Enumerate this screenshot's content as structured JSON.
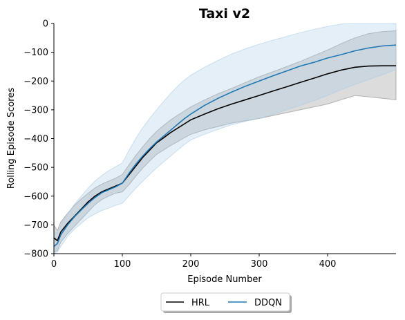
{
  "chart_data": {
    "type": "line",
    "title": "Taxi v2",
    "xlabel": "Episode Number",
    "ylabel": "Rolling Episode Scores",
    "xlim": [
      0,
      500
    ],
    "ylim": [
      -800,
      0
    ],
    "xticks": [
      0,
      100,
      200,
      300,
      400
    ],
    "yticks": [
      0,
      -100,
      -200,
      -300,
      -400,
      -500,
      -600,
      -700,
      -800
    ],
    "xtick_labels": [
      "0",
      "100",
      "200",
      "300",
      "400"
    ],
    "ytick_labels": [
      "0",
      "−100",
      "−200",
      "−300",
      "−400",
      "−500",
      "−600",
      "−700",
      "−800"
    ],
    "grid": false,
    "legend_position": "bottom-center",
    "series": [
      {
        "name": "HRL",
        "color": "#000000",
        "band_color": "#808080",
        "x": [
          0,
          5,
          10,
          20,
          30,
          40,
          50,
          60,
          70,
          80,
          90,
          100,
          110,
          120,
          130,
          140,
          150,
          160,
          170,
          180,
          190,
          200,
          220,
          240,
          260,
          280,
          300,
          320,
          340,
          360,
          380,
          400,
          420,
          440,
          460,
          480,
          500
        ],
        "mean": [
          -745,
          -755,
          -725,
          -695,
          -670,
          -645,
          -620,
          -600,
          -585,
          -575,
          -565,
          -555,
          -525,
          -495,
          -465,
          -440,
          -415,
          -398,
          -380,
          -365,
          -350,
          -335,
          -315,
          -296,
          -280,
          -265,
          -250,
          -235,
          -220,
          -205,
          -190,
          -175,
          -162,
          -152,
          -148,
          -147,
          -147
        ],
        "upper": [
          -700,
          -720,
          -690,
          -660,
          -632,
          -610,
          -590,
          -572,
          -558,
          -548,
          -538,
          -525,
          -490,
          -458,
          -428,
          -400,
          -375,
          -355,
          -336,
          -320,
          -305,
          -290,
          -266,
          -244,
          -225,
          -205,
          -185,
          -168,
          -150,
          -132,
          -112,
          -92,
          -70,
          -50,
          -35,
          -28,
          -25
        ],
        "lower": [
          -795,
          -790,
          -760,
          -730,
          -705,
          -680,
          -655,
          -630,
          -612,
          -600,
          -590,
          -585,
          -560,
          -530,
          -502,
          -478,
          -455,
          -440,
          -425,
          -412,
          -398,
          -385,
          -370,
          -358,
          -346,
          -338,
          -330,
          -320,
          -310,
          -300,
          -290,
          -280,
          -265,
          -250,
          -255,
          -260,
          -265
        ]
      },
      {
        "name": "DDQN",
        "color": "#1f77b4",
        "band_color": "#a6cbe6",
        "x": [
          0,
          5,
          10,
          20,
          30,
          40,
          50,
          60,
          70,
          80,
          90,
          100,
          110,
          120,
          130,
          140,
          150,
          160,
          170,
          180,
          190,
          200,
          220,
          240,
          260,
          280,
          300,
          320,
          340,
          360,
          380,
          400,
          420,
          440,
          460,
          480,
          500
        ],
        "mean": [
          -775,
          -765,
          -735,
          -700,
          -672,
          -648,
          -625,
          -605,
          -588,
          -578,
          -568,
          -555,
          -520,
          -488,
          -460,
          -435,
          -412,
          -392,
          -372,
          -352,
          -332,
          -315,
          -285,
          -260,
          -238,
          -218,
          -200,
          -182,
          -165,
          -148,
          -135,
          -120,
          -108,
          -95,
          -85,
          -78,
          -75
        ],
        "upper": [
          -720,
          -730,
          -700,
          -662,
          -628,
          -600,
          -572,
          -548,
          -528,
          -512,
          -498,
          -485,
          -440,
          -398,
          -362,
          -330,
          -300,
          -272,
          -245,
          -220,
          -198,
          -180,
          -152,
          -128,
          -106,
          -88,
          -72,
          -58,
          -45,
          -32,
          -20,
          -10,
          -2,
          0,
          0,
          0,
          0
        ],
        "lower": [
          -800,
          -795,
          -775,
          -740,
          -715,
          -695,
          -675,
          -662,
          -650,
          -642,
          -632,
          -625,
          -598,
          -572,
          -548,
          -525,
          -502,
          -482,
          -462,
          -442,
          -422,
          -405,
          -385,
          -368,
          -352,
          -340,
          -330,
          -316,
          -300,
          -285,
          -268,
          -250,
          -230,
          -212,
          -195,
          -178,
          -160
        ]
      }
    ]
  }
}
